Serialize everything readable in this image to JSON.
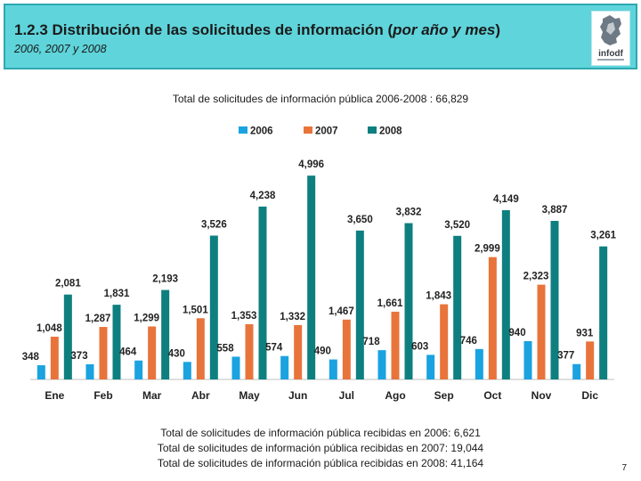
{
  "header": {
    "title_main": "1.2.3 Distribución de las solicitudes de información (",
    "title_em": "por año y mes",
    "title_end": ")",
    "subtitle": "2006, 2007 y 2008",
    "logo_text": "infodf"
  },
  "colors": {
    "s2006": "#1aa3e0",
    "s2007": "#e8743b",
    "s2008": "#0e7f7f",
    "header_bg": "#5fd4db"
  },
  "chart_data": {
    "type": "bar",
    "title": "Total de solicitudes de información pública 2006-2008 : 66,829",
    "categories": [
      "Ene",
      "Feb",
      "Mar",
      "Abr",
      "May",
      "Jun",
      "Jul",
      "Ago",
      "Sep",
      "Oct",
      "Nov",
      "Dic"
    ],
    "series": [
      {
        "name": "2006",
        "values": [
          348,
          373,
          464,
          430,
          558,
          574,
          490,
          718,
          603,
          746,
          940,
          377
        ]
      },
      {
        "name": "2007",
        "values": [
          1048,
          1287,
          1299,
          1501,
          1353,
          1332,
          1467,
          1661,
          1843,
          2999,
          2323,
          931
        ]
      },
      {
        "name": "2008",
        "values": [
          2081,
          1831,
          2193,
          3526,
          4238,
          4996,
          3650,
          3832,
          3520,
          4149,
          3887,
          3261
        ]
      }
    ],
    "labels": [
      [
        "348",
        "373",
        "464",
        "430",
        "558",
        "574",
        "490",
        "718",
        "603",
        "746",
        "940",
        "377"
      ],
      [
        "1,048",
        "1,287",
        "1,299",
        "1,501",
        "1,353",
        "1,332",
        "1,467",
        "1,661",
        "1,843",
        "2,999",
        "2,323",
        "931"
      ],
      [
        "2,081",
        "1,831",
        "2,193",
        "3,526",
        "4,238",
        "4,996",
        "3,650",
        "3,832",
        "3,520",
        "4,149",
        "3,887",
        "3,261"
      ]
    ],
    "ylim": [
      0,
      5000
    ],
    "grid": false,
    "legend": "top-center"
  },
  "footer": {
    "line1": "Total de solicitudes de información pública recibidas en 2006: 6,621",
    "line2": "Total de solicitudes de información pública recibidas en 2007: 19,044",
    "line3": "Total de solicitudes de información pública recibidas en 2008: 41,164"
  },
  "page_number": "7"
}
